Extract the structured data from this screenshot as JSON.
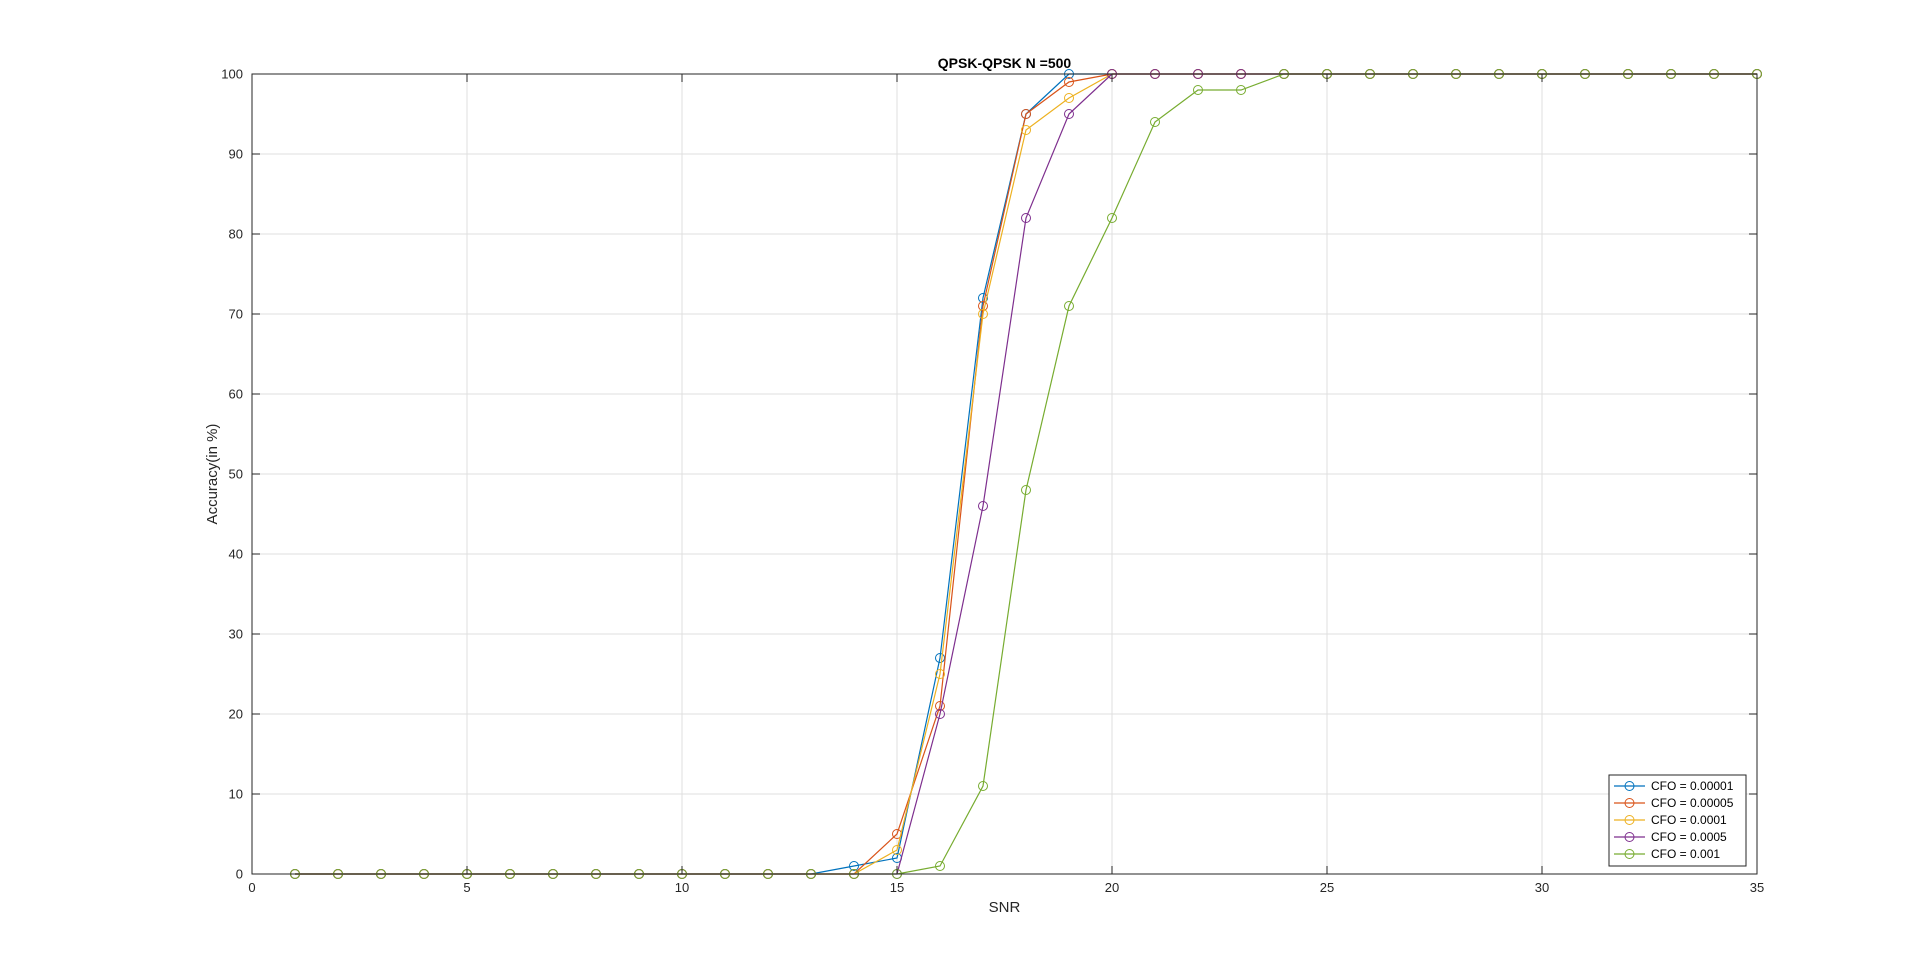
{
  "chart_data": {
    "type": "line",
    "title": "QPSK-QPSK N =500",
    "xlabel": "SNR",
    "ylabel": "Accuracy(in %)",
    "xlim": [
      0,
      35
    ],
    "ylim": [
      0,
      100
    ],
    "xticks": [
      0,
      5,
      10,
      15,
      20,
      25,
      30,
      35
    ],
    "yticks": [
      0,
      10,
      20,
      30,
      40,
      50,
      60,
      70,
      80,
      90,
      100
    ],
    "grid": true,
    "legend_position": "bottom-right",
    "marker": "circle",
    "x": [
      1,
      2,
      3,
      4,
      5,
      6,
      7,
      8,
      9,
      10,
      11,
      12,
      13,
      14,
      15,
      16,
      17,
      18,
      19,
      20,
      21,
      22,
      23,
      24,
      25,
      26,
      27,
      28,
      29,
      30,
      31,
      32,
      33,
      34,
      35
    ],
    "series": [
      {
        "name": "CFO = 0.00001",
        "color": "#0072BD",
        "values": [
          0,
          0,
          0,
          0,
          0,
          0,
          0,
          0,
          0,
          0,
          0,
          0,
          0,
          1,
          2,
          27,
          72,
          95,
          100,
          100,
          100,
          100,
          100,
          100,
          100,
          100,
          100,
          100,
          100,
          100,
          100,
          100,
          100,
          100,
          100
        ]
      },
      {
        "name": "CFO = 0.00005",
        "color": "#D95319",
        "values": [
          0,
          0,
          0,
          0,
          0,
          0,
          0,
          0,
          0,
          0,
          0,
          0,
          0,
          0,
          5,
          21,
          71,
          95,
          99,
          100,
          100,
          100,
          100,
          100,
          100,
          100,
          100,
          100,
          100,
          100,
          100,
          100,
          100,
          100,
          100
        ]
      },
      {
        "name": "CFO = 0.0001",
        "color": "#EDB120",
        "values": [
          0,
          0,
          0,
          0,
          0,
          0,
          0,
          0,
          0,
          0,
          0,
          0,
          0,
          0,
          3,
          25,
          70,
          93,
          97,
          100,
          100,
          100,
          100,
          100,
          100,
          100,
          100,
          100,
          100,
          100,
          100,
          100,
          100,
          100,
          100
        ]
      },
      {
        "name": "CFO = 0.0005",
        "color": "#7E2F8E",
        "values": [
          0,
          0,
          0,
          0,
          0,
          0,
          0,
          0,
          0,
          0,
          0,
          0,
          0,
          0,
          0,
          20,
          46,
          82,
          95,
          100,
          100,
          100,
          100,
          100,
          100,
          100,
          100,
          100,
          100,
          100,
          100,
          100,
          100,
          100,
          100
        ]
      },
      {
        "name": "CFO = 0.001",
        "color": "#77AC30",
        "values": [
          0,
          0,
          0,
          0,
          0,
          0,
          0,
          0,
          0,
          0,
          0,
          0,
          0,
          0,
          0,
          1,
          11,
          48,
          71,
          82,
          94,
          98,
          98,
          100,
          100,
          100,
          100,
          100,
          100,
          100,
          100,
          100,
          100,
          100,
          100
        ]
      }
    ]
  }
}
